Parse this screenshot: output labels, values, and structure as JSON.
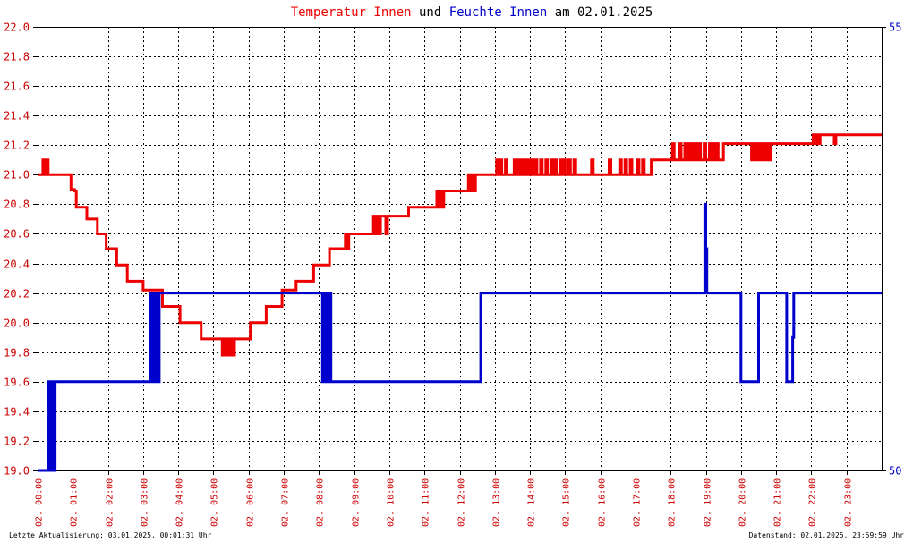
{
  "title": {
    "part1": "Temperatur Innen",
    "part2": " und ",
    "part3": "Feuchte Innen",
    "part4": " am 02.01.2025"
  },
  "footer": {
    "left": "Letzte Aktualisierung: 03.01.2025, 00:01:31 Uhr",
    "right": "Datenstand: 02.01.2025, 23:59:59 Uhr"
  },
  "colors": {
    "temperature": "#ee0000",
    "humidity": "#0000cc",
    "left_axis": "#cc0000",
    "right_axis": "#0000cc"
  },
  "chart_data": {
    "type": "line",
    "title": "Temperatur Innen und Feuchte Innen am 02.01.2025",
    "grid": true,
    "x_ticks": [
      "02. 00:00",
      "02. 01:00",
      "02. 02:00",
      "02. 03:00",
      "02. 04:00",
      "02. 05:00",
      "02. 06:00",
      "02. 07:00",
      "02. 08:00",
      "02. 09:00",
      "02. 10:00",
      "02. 11:00",
      "02. 12:00",
      "02. 13:00",
      "02. 14:00",
      "02. 15:00",
      "02. 16:00",
      "02. 17:00",
      "02. 18:00",
      "02. 19:00",
      "02. 20:00",
      "02. 21:00",
      "02. 22:00",
      "02. 23:00"
    ],
    "xlim_hours": [
      0,
      24
    ],
    "y_left": {
      "min": 19.0,
      "max": 22.0,
      "ticks": [
        "19.0",
        "19.2",
        "19.4",
        "19.6",
        "19.8",
        "20.0",
        "20.2",
        "20.4",
        "20.6",
        "20.8",
        "21.0",
        "21.2",
        "21.4",
        "21.6",
        "21.8",
        "22.0"
      ]
    },
    "y_right": {
      "min": 50,
      "max": 55,
      "ticks": [
        "50",
        "55"
      ]
    },
    "series": [
      {
        "name": "Temperatur Innen",
        "axis": "left",
        "points": [
          [
            0.0,
            21.0
          ],
          [
            0.15,
            21.1
          ],
          [
            0.2,
            21.0
          ],
          [
            0.25,
            21.1
          ],
          [
            0.3,
            21.0
          ],
          [
            0.9,
            21.0
          ],
          [
            0.95,
            20.9
          ],
          [
            1.05,
            20.89
          ],
          [
            1.1,
            20.78
          ],
          [
            1.35,
            20.78
          ],
          [
            1.4,
            20.7
          ],
          [
            1.65,
            20.7
          ],
          [
            1.7,
            20.6
          ],
          [
            1.9,
            20.6
          ],
          [
            1.95,
            20.5
          ],
          [
            2.2,
            20.5
          ],
          [
            2.25,
            20.39
          ],
          [
            2.5,
            20.39
          ],
          [
            2.55,
            20.28
          ],
          [
            2.95,
            20.28
          ],
          [
            3.0,
            20.22
          ],
          [
            3.5,
            20.22
          ],
          [
            3.55,
            20.11
          ],
          [
            4.0,
            20.11
          ],
          [
            4.05,
            20.0
          ],
          [
            4.6,
            20.0
          ],
          [
            4.65,
            19.89
          ],
          [
            5.2,
            19.89
          ],
          [
            5.25,
            19.78
          ],
          [
            5.3,
            19.89
          ],
          [
            5.35,
            19.78
          ],
          [
            5.4,
            19.89
          ],
          [
            5.45,
            19.78
          ],
          [
            5.5,
            19.89
          ],
          [
            5.55,
            19.78
          ],
          [
            5.6,
            19.89
          ],
          [
            6.0,
            19.89
          ],
          [
            6.05,
            20.0
          ],
          [
            6.45,
            20.0
          ],
          [
            6.5,
            20.11
          ],
          [
            6.9,
            20.11
          ],
          [
            6.95,
            20.22
          ],
          [
            7.3,
            20.22
          ],
          [
            7.35,
            20.28
          ],
          [
            7.8,
            20.28
          ],
          [
            7.85,
            20.39
          ],
          [
            8.25,
            20.39
          ],
          [
            8.3,
            20.5
          ],
          [
            8.7,
            20.5
          ],
          [
            8.75,
            20.6
          ],
          [
            8.8,
            20.5
          ],
          [
            8.85,
            20.6
          ],
          [
            9.5,
            20.6
          ],
          [
            9.55,
            20.72
          ],
          [
            9.6,
            20.6
          ],
          [
            9.65,
            20.72
          ],
          [
            9.7,
            20.6
          ],
          [
            9.75,
            20.72
          ],
          [
            9.85,
            20.72
          ],
          [
            9.9,
            20.6
          ],
          [
            9.95,
            20.72
          ],
          [
            10.5,
            20.72
          ],
          [
            10.55,
            20.78
          ],
          [
            11.3,
            20.78
          ],
          [
            11.35,
            20.89
          ],
          [
            11.4,
            20.78
          ],
          [
            11.45,
            20.89
          ],
          [
            11.5,
            20.78
          ],
          [
            11.55,
            20.89
          ],
          [
            12.2,
            20.89
          ],
          [
            12.25,
            21.0
          ],
          [
            12.3,
            20.89
          ],
          [
            12.35,
            21.0
          ],
          [
            12.4,
            20.89
          ],
          [
            12.45,
            21.0
          ],
          [
            13.0,
            21.0
          ],
          [
            13.05,
            21.1
          ],
          [
            13.1,
            21.0
          ],
          [
            13.15,
            21.1
          ],
          [
            13.2,
            21.0
          ],
          [
            13.3,
            21.1
          ],
          [
            13.35,
            21.0
          ],
          [
            13.5,
            21.0
          ],
          [
            13.55,
            21.1
          ],
          [
            13.6,
            21.0
          ],
          [
            13.65,
            21.1
          ],
          [
            13.7,
            21.0
          ],
          [
            13.75,
            21.1
          ],
          [
            13.8,
            21.0
          ],
          [
            13.85,
            21.1
          ],
          [
            13.9,
            21.0
          ],
          [
            13.95,
            21.1
          ],
          [
            14.0,
            21.0
          ],
          [
            14.05,
            21.1
          ],
          [
            14.1,
            21.0
          ],
          [
            14.15,
            21.1
          ],
          [
            14.2,
            21.0
          ],
          [
            14.3,
            21.1
          ],
          [
            14.35,
            21.0
          ],
          [
            14.45,
            21.1
          ],
          [
            14.5,
            21.0
          ],
          [
            14.6,
            21.1
          ],
          [
            14.65,
            21.0
          ],
          [
            14.7,
            21.1
          ],
          [
            14.75,
            21.0
          ],
          [
            14.85,
            21.1
          ],
          [
            14.9,
            21.0
          ],
          [
            14.95,
            21.1
          ],
          [
            15.0,
            21.0
          ],
          [
            15.1,
            21.1
          ],
          [
            15.15,
            21.0
          ],
          [
            15.25,
            21.1
          ],
          [
            15.3,
            21.0
          ],
          [
            15.7,
            21.0
          ],
          [
            15.75,
            21.1
          ],
          [
            15.8,
            21.0
          ],
          [
            16.2,
            21.0
          ],
          [
            16.25,
            21.1
          ],
          [
            16.3,
            21.0
          ],
          [
            16.5,
            21.0
          ],
          [
            16.55,
            21.1
          ],
          [
            16.6,
            21.0
          ],
          [
            16.7,
            21.1
          ],
          [
            16.75,
            21.0
          ],
          [
            16.85,
            21.1
          ],
          [
            16.9,
            21.0
          ],
          [
            17.0,
            21.0
          ],
          [
            17.05,
            21.1
          ],
          [
            17.1,
            21.0
          ],
          [
            17.2,
            21.1
          ],
          [
            17.25,
            21.0
          ],
          [
            17.4,
            21.0
          ],
          [
            17.45,
            21.1
          ],
          [
            18.0,
            21.1
          ],
          [
            18.05,
            21.21
          ],
          [
            18.1,
            21.1
          ],
          [
            18.2,
            21.1
          ],
          [
            18.25,
            21.21
          ],
          [
            18.3,
            21.1
          ],
          [
            18.4,
            21.21
          ],
          [
            18.45,
            21.1
          ],
          [
            18.5,
            21.21
          ],
          [
            18.55,
            21.1
          ],
          [
            18.6,
            21.21
          ],
          [
            18.65,
            21.1
          ],
          [
            18.7,
            21.21
          ],
          [
            18.75,
            21.1
          ],
          [
            18.8,
            21.21
          ],
          [
            18.85,
            21.1
          ],
          [
            18.95,
            21.21
          ],
          [
            19.0,
            21.1
          ],
          [
            19.1,
            21.21
          ],
          [
            19.15,
            21.1
          ],
          [
            19.2,
            21.21
          ],
          [
            19.25,
            21.1
          ],
          [
            19.3,
            21.21
          ],
          [
            19.35,
            21.1
          ],
          [
            19.45,
            21.1
          ],
          [
            19.5,
            21.21
          ],
          [
            20.25,
            21.21
          ],
          [
            20.3,
            21.1
          ],
          [
            20.35,
            21.21
          ],
          [
            20.4,
            21.1
          ],
          [
            20.45,
            21.21
          ],
          [
            20.5,
            21.1
          ],
          [
            20.55,
            21.21
          ],
          [
            20.6,
            21.1
          ],
          [
            20.65,
            21.21
          ],
          [
            20.7,
            21.1
          ],
          [
            20.75,
            21.21
          ],
          [
            20.8,
            21.1
          ],
          [
            20.85,
            21.21
          ],
          [
            22.0,
            21.21
          ],
          [
            22.05,
            21.27
          ],
          [
            22.1,
            21.21
          ],
          [
            22.15,
            21.27
          ],
          [
            22.2,
            21.21
          ],
          [
            22.25,
            21.27
          ],
          [
            22.6,
            21.27
          ],
          [
            22.65,
            21.21
          ],
          [
            22.7,
            21.27
          ],
          [
            24.0,
            21.27
          ]
        ]
      },
      {
        "name": "Feuchte Innen",
        "axis": "right",
        "points": [
          [
            0.0,
            50.0
          ],
          [
            0.3,
            50.0
          ],
          [
            0.3,
            51.0
          ],
          [
            0.35,
            50.0
          ],
          [
            0.38,
            51.0
          ],
          [
            0.41,
            50.0
          ],
          [
            0.44,
            51.0
          ],
          [
            0.47,
            50.0
          ],
          [
            0.5,
            51.0
          ],
          [
            3.2,
            51.0
          ],
          [
            3.2,
            52.0
          ],
          [
            3.25,
            51.0
          ],
          [
            3.28,
            52.0
          ],
          [
            3.31,
            51.0
          ],
          [
            3.34,
            52.0
          ],
          [
            3.37,
            51.0
          ],
          [
            3.4,
            52.0
          ],
          [
            3.43,
            51.0
          ],
          [
            3.46,
            52.0
          ],
          [
            8.1,
            52.0
          ],
          [
            8.1,
            51.0
          ],
          [
            8.13,
            52.0
          ],
          [
            8.16,
            51.0
          ],
          [
            8.19,
            52.0
          ],
          [
            8.22,
            51.0
          ],
          [
            8.25,
            52.0
          ],
          [
            8.28,
            51.0
          ],
          [
            8.31,
            52.0
          ],
          [
            8.34,
            51.0
          ],
          [
            12.55,
            51.0
          ],
          [
            12.6,
            52.0
          ],
          [
            18.95,
            52.0
          ],
          [
            18.97,
            53.0
          ],
          [
            19.0,
            52.5
          ],
          [
            19.03,
            52.0
          ],
          [
            19.97,
            52.0
          ],
          [
            20.0,
            51.0
          ],
          [
            20.45,
            51.0
          ],
          [
            20.5,
            52.0
          ],
          [
            21.25,
            52.0
          ],
          [
            21.3,
            51.0
          ],
          [
            21.45,
            51.0
          ],
          [
            21.47,
            51.5
          ],
          [
            21.5,
            52.0
          ],
          [
            24.0,
            52.0
          ]
        ]
      }
    ]
  }
}
